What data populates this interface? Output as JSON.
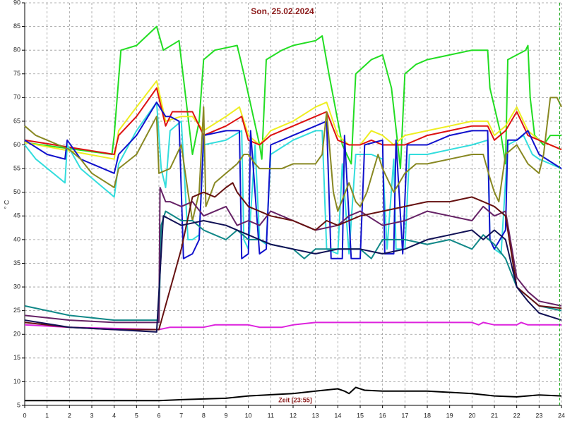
{
  "chart_data": {
    "type": "line",
    "title": "Son, 25.02.2024",
    "y_label": "° C",
    "x_label": "Zeit [23:55]",
    "xlim": [
      0,
      24
    ],
    "ylim": [
      5,
      90
    ],
    "xticks": [
      0,
      1,
      2,
      3,
      4,
      5,
      6,
      7,
      8,
      9,
      10,
      11,
      12,
      13,
      14,
      15,
      16,
      17,
      18,
      19,
      20,
      21,
      22,
      23,
      24
    ],
    "yticks": [
      5,
      10,
      15,
      20,
      25,
      30,
      35,
      40,
      45,
      50,
      55,
      60,
      65,
      70,
      75,
      80,
      85,
      90
    ],
    "grid": true,
    "cursor_x": 23.92,
    "cursor_color": "#22aa22",
    "series": [
      {
        "color": "#22dd22",
        "x": [
          0,
          3.9,
          4.0,
          4.3,
          5,
          5.9,
          6.2,
          6.9,
          7.2,
          7.5,
          7.8,
          8.0,
          8.5,
          9.5,
          9.8,
          10.5,
          10.6,
          10.8,
          11.5,
          12,
          13,
          13.3,
          13.6,
          14.2,
          14.6,
          14.8,
          15.5,
          16,
          16.4,
          16.8,
          17,
          17.5,
          18,
          19,
          20,
          20.7,
          20.8,
          21.3,
          21.5,
          21.6,
          22.4,
          22.5,
          22.6,
          22.8,
          23.2,
          23.5,
          24
        ],
        "values": [
          60.5,
          58,
          62,
          80,
          81,
          85,
          80,
          82,
          70,
          58,
          65,
          78,
          80,
          81,
          75,
          60,
          57,
          78,
          80,
          81,
          82,
          83,
          75,
          60,
          56,
          75,
          78,
          79,
          72,
          55,
          75,
          77,
          78,
          79,
          80,
          80,
          72,
          62,
          56,
          78,
          80,
          81,
          70,
          62,
          60,
          62,
          62
        ]
      },
      {
        "color": "#eeee22",
        "x": [
          0,
          4,
          4.2,
          5,
          5.9,
          6.3,
          7,
          7.5,
          8,
          9,
          9.6,
          10,
          10.5,
          11,
          12,
          13,
          13.5,
          14,
          14.5,
          15,
          15.5,
          16,
          16.5,
          17,
          18,
          19,
          20,
          20.7,
          21,
          21.5,
          22,
          22.5,
          23,
          24
        ],
        "values": [
          60.5,
          57,
          63,
          68,
          73.5,
          65,
          66,
          66,
          63,
          66,
          68,
          62,
          60,
          63,
          65,
          68,
          69,
          62,
          60,
          60,
          63,
          62,
          60,
          62,
          63,
          64,
          65,
          65,
          62,
          64,
          68,
          63,
          61,
          59
        ]
      },
      {
        "color": "#dd1111",
        "x": [
          0,
          4,
          4.2,
          5,
          5.9,
          6.3,
          6.6,
          7.5,
          8,
          9,
          9.7,
          10,
          10.5,
          11,
          12,
          13,
          13.5,
          14,
          14.5,
          15,
          15.5,
          16,
          17,
          18,
          19,
          20,
          20.7,
          21,
          21.5,
          22,
          22.5,
          23,
          24
        ],
        "values": [
          61,
          58,
          62,
          66,
          72,
          64,
          67,
          67,
          62,
          64,
          66,
          61,
          60,
          62,
          64,
          66,
          67,
          61,
          60,
          60,
          61,
          60,
          60,
          62,
          63,
          64,
          64,
          61,
          63,
          67,
          62,
          61,
          59
        ]
      },
      {
        "color": "#33dddd",
        "x": [
          0,
          0.5,
          1.8,
          1.9,
          2.5,
          3,
          4,
          4.2,
          5,
          5.9,
          6.1,
          6.3,
          6.5,
          7,
          7.3,
          7.5,
          7.8,
          8,
          9,
          9.7,
          9.8,
          10,
          10.3,
          10.5,
          10.8,
          11,
          12,
          13,
          13.3,
          13.5,
          14,
          14.2,
          14.5,
          14.8,
          15.5,
          16,
          16.2,
          16.5,
          16.6,
          17,
          17.2,
          18,
          19,
          20,
          20.7,
          20.8,
          21,
          21.3,
          21.6,
          22,
          22.3,
          22.7,
          23,
          24
        ],
        "values": [
          60,
          57,
          52,
          60,
          55,
          53,
          49,
          56,
          63,
          69,
          55,
          51,
          63,
          65,
          40,
          40,
          41,
          60,
          61,
          63,
          40,
          38,
          60,
          40,
          39,
          58,
          61,
          63,
          63,
          38,
          37,
          56,
          37,
          58,
          58,
          57,
          38,
          57,
          38,
          38,
          58,
          58,
          59,
          60,
          61,
          40,
          38,
          37,
          60,
          61,
          62,
          58,
          57,
          55
        ]
      },
      {
        "color": "#1111cc",
        "x": [
          0,
          1,
          1.8,
          1.9,
          2.5,
          3.5,
          4,
          4.2,
          5,
          5.9,
          6.3,
          6.5,
          6.9,
          7.1,
          7.5,
          7.8,
          8,
          9,
          9.6,
          9.7,
          10,
          10.1,
          10.5,
          10.8,
          11,
          12,
          13,
          13.5,
          13.7,
          14.2,
          14.3,
          14.6,
          15,
          15.2,
          16,
          16.1,
          16.5,
          16.6,
          16.9,
          17.1,
          18,
          19,
          20,
          20.7,
          20.8,
          21,
          21.5,
          21.6,
          22,
          22.5,
          23,
          24
        ],
        "values": [
          61,
          58,
          57,
          61,
          57,
          55,
          54,
          58,
          62,
          69,
          66,
          66,
          65,
          36,
          37,
          40,
          62,
          63,
          63,
          36,
          37,
          63,
          37,
          38,
          60,
          62,
          64,
          65,
          36,
          36,
          62,
          36,
          36,
          60,
          61,
          37,
          37,
          61,
          37,
          60,
          60,
          62,
          63,
          63,
          40,
          38,
          42,
          61,
          61,
          63,
          58,
          55
        ]
      },
      {
        "color": "#888822",
        "x": [
          0,
          0.5,
          1,
          2,
          2.5,
          3,
          4,
          4.2,
          5,
          5.9,
          6,
          6.5,
          7,
          7.3,
          7.5,
          7.8,
          8,
          8.1,
          8.5,
          9,
          9.5,
          9.8,
          10,
          10.3,
          10.5,
          11,
          11.5,
          12,
          13,
          13.3,
          13.5,
          13.8,
          14,
          14.5,
          14.8,
          15,
          15.3,
          15.8,
          16,
          16.5,
          17,
          17.5,
          18,
          19,
          20,
          20.5,
          20.8,
          21,
          21.2,
          21.5,
          22,
          22.5,
          23,
          23.2,
          23.5,
          23.8,
          24
        ],
        "values": [
          64,
          62,
          61,
          59,
          57,
          54,
          51,
          55,
          58,
          66,
          54,
          55,
          60,
          50,
          44,
          50,
          68,
          47,
          52,
          54,
          56,
          58,
          58,
          56,
          55,
          55,
          55,
          56,
          56,
          58,
          67,
          50,
          46,
          52,
          48,
          47,
          50,
          58,
          55,
          50,
          54,
          56,
          56,
          57,
          58,
          58,
          53,
          50,
          48,
          58,
          60,
          56,
          54,
          58,
          70,
          70,
          68
        ]
      },
      {
        "color": "#dd22dd",
        "x": [
          0,
          2,
          6,
          6.5,
          8,
          8.5,
          10,
          10.5,
          11.5,
          12,
          13,
          20,
          20.3,
          20.5,
          21,
          22,
          22.2,
          22.5,
          24
        ],
        "values": [
          22,
          21.5,
          21,
          21.5,
          21.5,
          22,
          22,
          21.5,
          21.5,
          22,
          22.5,
          22.5,
          22,
          22.5,
          22,
          22,
          22.5,
          22,
          22
        ]
      },
      {
        "color": "#000000",
        "x": [
          0,
          2,
          5,
          6,
          7,
          9,
          10,
          12,
          13,
          14,
          14.3,
          14.5,
          14.8,
          15.2,
          16,
          18,
          20,
          21,
          22,
          23,
          24
        ],
        "values": [
          6,
          6,
          6,
          6,
          6.2,
          6.5,
          7,
          7.5,
          8,
          8.5,
          8,
          7.5,
          8.8,
          8.2,
          8,
          8,
          7.5,
          7,
          6.8,
          7.2,
          7
        ]
      },
      {
        "color": "#118888",
        "x": [
          0,
          1,
          2,
          4,
          6,
          6.1,
          6.3,
          7,
          7.5,
          8,
          9,
          9.5,
          10,
          10.5,
          11,
          12,
          12.5,
          13,
          14,
          15,
          15.5,
          16,
          17,
          18,
          19,
          20,
          20.5,
          21,
          21.5,
          22,
          22.5,
          23,
          24
        ],
        "values": [
          26,
          25,
          24,
          23,
          23,
          43,
          46,
          44,
          44,
          42,
          40,
          42,
          40,
          40,
          39,
          38,
          36,
          38,
          38,
          38,
          36,
          40,
          40,
          39,
          40,
          38,
          41,
          39,
          36,
          30,
          28,
          26,
          25
        ]
      },
      {
        "color": "#662266",
        "x": [
          0,
          2,
          4,
          6,
          6.05,
          6.3,
          6.5,
          7,
          7.5,
          8,
          9,
          9.5,
          10,
          10.5,
          11,
          12,
          12.5,
          13,
          14,
          14.5,
          15,
          16,
          17,
          18,
          19,
          20,
          20.5,
          21,
          21.5,
          22,
          22.5,
          23,
          24
        ],
        "values": [
          24,
          23,
          22.5,
          22.5,
          51,
          48,
          48,
          47,
          48,
          45,
          47,
          43,
          44,
          43,
          46,
          44,
          43,
          42,
          43,
          45,
          46,
          43,
          44,
          46,
          45,
          44,
          47,
          45,
          46,
          32,
          29,
          27,
          26
        ]
      },
      {
        "color": "#661111",
        "x": [
          0,
          2,
          4,
          6,
          7,
          7.5,
          8,
          8.5,
          9,
          9.3,
          9.5,
          10,
          11,
          12,
          12.5,
          13,
          13.5,
          14,
          15,
          16,
          17,
          18,
          19,
          20,
          20.5,
          21,
          21.5,
          22,
          23,
          24
        ],
        "values": [
          22.5,
          21.5,
          21,
          21,
          38,
          49,
          50,
          49,
          51,
          52,
          50,
          47,
          45,
          44,
          43,
          42,
          44,
          43,
          45,
          46,
          47,
          48,
          48,
          49,
          48,
          47,
          45,
          30,
          26,
          25.5
        ]
      },
      {
        "color": "#111155",
        "x": [
          0,
          2,
          4,
          5.9,
          6.2,
          7,
          8,
          9,
          10,
          10.5,
          11,
          12,
          13,
          14,
          15,
          16,
          17,
          18,
          19,
          20,
          20.5,
          21,
          21.5,
          22,
          22.5,
          23,
          24
        ],
        "values": [
          23,
          21.5,
          21,
          20.5,
          45,
          43,
          44,
          43,
          41,
          40,
          39,
          38,
          37,
          38,
          38,
          37,
          38,
          40,
          41,
          42,
          40,
          42,
          40,
          30,
          27,
          24.5,
          23
        ]
      }
    ]
  }
}
